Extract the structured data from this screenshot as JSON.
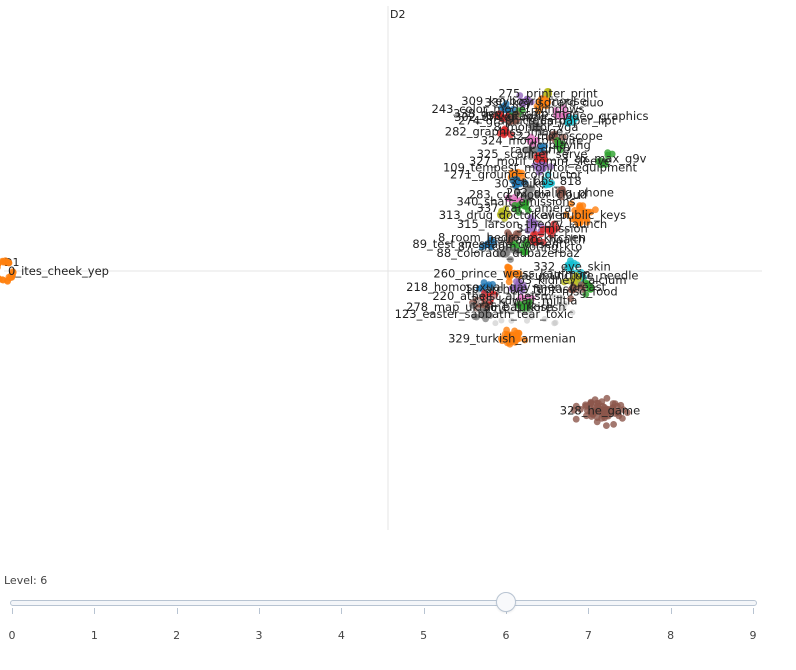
{
  "chart_data": {
    "type": "scatter",
    "xlabel": "D1",
    "ylabel": "D2",
    "grid": false,
    "legend": "none",
    "clusters": [
      {
        "label": "0_ites_cheek_yep",
        "x": -9.6,
        "y": 0.0,
        "color": "#ff7f0e",
        "count": 40,
        "spread": 0.22
      },
      {
        "label": "275_printer_print",
        "x": 4.0,
        "y": 3.95,
        "color": "#bcbd22",
        "count": 10,
        "spread": 0.15
      },
      {
        "label": "330_key_sdcard_duo",
        "x": 3.9,
        "y": 3.75,
        "color": "#ff7f0e",
        "count": 14,
        "spread": 0.35
      },
      {
        "label": "309_keyboard_mouse",
        "x": 3.4,
        "y": 3.78,
        "color": "#9467bd",
        "count": 10,
        "spread": 0.25
      },
      {
        "label": "243_color_model_windows",
        "x": 3.0,
        "y": 3.6,
        "color": "#1f77b4",
        "count": 10,
        "spread": 0.25
      },
      {
        "label": "338_device_chip_mac",
        "x": 3.2,
        "y": 3.5,
        "color": "#2ca02c",
        "count": 8,
        "spread": 0.25
      },
      {
        "label": "338_graphics_video_graphics",
        "x": 4.4,
        "y": 3.45,
        "color": "#e377c2",
        "count": 10,
        "spread": 0.3
      },
      {
        "label": "302_driver_mac",
        "x": 2.8,
        "y": 3.42,
        "color": "#d62728",
        "count": 10,
        "spread": 0.25
      },
      {
        "label": "274_graphics_card",
        "x": 3.1,
        "y": 3.35,
        "color": "#8c564b",
        "count": 10,
        "spread": 0.25
      },
      {
        "label": "tgus_paper_lipt",
        "x": 4.6,
        "y": 3.35,
        "color": "#17becf",
        "count": 10,
        "spread": 0.25
      },
      {
        "label": "8_monitor_vga",
        "x": 3.7,
        "y": 3.2,
        "color": "#7f7f7f",
        "count": 10,
        "spread": 0.25
      },
      {
        "label": "282_graphics_image",
        "x": 2.9,
        "y": 3.1,
        "color": "#d62728",
        "count": 10,
        "spread": 0.25
      },
      {
        "label": "322_microscope",
        "x": 4.2,
        "y": 3.0,
        "color": "#8c564b",
        "count": 8,
        "spread": 0.25
      },
      {
        "label": "324_monitor_wire",
        "x": 3.6,
        "y": 2.9,
        "color": "#e377c2",
        "count": 8,
        "spread": 0.25
      },
      {
        "label": "pc_playing",
        "x": 4.3,
        "y": 2.8,
        "color": "#2ca02c",
        "count": 8,
        "spread": 0.2
      },
      {
        "label": "rack_drive",
        "x": 3.8,
        "y": 2.7,
        "color": "#1f77b4",
        "count": 8,
        "spread": 0.2
      },
      {
        "label": "325_scanner_serve",
        "x": 3.6,
        "y": 2.6,
        "color": "#7f7f7f",
        "count": 8,
        "spread": 0.25
      },
      {
        "label": "3_ax_max_g9v",
        "x": 5.4,
        "y": 2.5,
        "color": "#2ca02c",
        "count": 8,
        "spread": 0.25
      },
      {
        "label": "327_motif_comm_sleeve",
        "x": 3.8,
        "y": 2.45,
        "color": "#d62728",
        "count": 10,
        "spread": 0.3
      },
      {
        "label": "109_tempest_monitor_equipment",
        "x": 3.8,
        "y": 2.3,
        "color": "#9467bd",
        "count": 10,
        "spread": 0.3
      },
      {
        "label": "271_ground_conductor",
        "x": 3.2,
        "y": 2.15,
        "color": "#ff7f0e",
        "count": 10,
        "spread": 0.3
      },
      {
        "label": "ca_bbs_818",
        "x": 4.0,
        "y": 2.0,
        "color": "#17becf",
        "count": 8,
        "spread": 0.25
      },
      {
        "label": "303_bike",
        "x": 3.3,
        "y": 1.95,
        "color": "#1f77b4",
        "count": 10,
        "spread": 0.3
      },
      {
        "label": "202_dialing_phone",
        "x": 4.3,
        "y": 1.75,
        "color": "#8c564b",
        "count": 10,
        "spread": 0.25
      },
      {
        "label": "283_cd_motor_cloud",
        "x": 3.5,
        "y": 1.7,
        "color": "#7f7f7f",
        "count": 12,
        "spread": 0.35
      },
      {
        "label": "340_shaft_emissions",
        "x": 3.2,
        "y": 1.55,
        "color": "#e377c2",
        "count": 10,
        "spread": 0.3
      },
      {
        "label": "337_car_camera",
        "x": 3.4,
        "y": 1.4,
        "color": "#2ca02c",
        "count": 10,
        "spread": 0.3
      },
      {
        "label": "313_drug_doctor_alien",
        "x": 2.9,
        "y": 1.25,
        "color": "#bcbd22",
        "count": 12,
        "spread": 0.3
      },
      {
        "label": "key_public_keys",
        "x": 4.8,
        "y": 1.25,
        "color": "#ff7f0e",
        "count": 30,
        "spread": 0.45
      },
      {
        "label": "315_larson_theory_launch",
        "x": 3.6,
        "y": 1.05,
        "color": "#9467bd",
        "count": 12,
        "spread": 0.35
      },
      {
        "label": "317_mission",
        "x": 4.1,
        "y": 0.95,
        "color": "#d62728",
        "count": 10,
        "spread": 0.3
      },
      {
        "label": "8_room_bedroom_kitchen",
        "x": 3.1,
        "y": 0.75,
        "color": "#8c564b",
        "count": 10,
        "spread": 0.3
      },
      {
        "label": "insurance_health",
        "x": 3.7,
        "y": 0.7,
        "color": "#d62728",
        "count": 10,
        "spread": 0.3
      },
      {
        "label": "89_test_message_consent",
        "x": 2.5,
        "y": 0.6,
        "color": "#1f77b4",
        "count": 10,
        "spread": 0.3
      },
      {
        "label": "87_sitcom_voting_kto",
        "x": 3.3,
        "y": 0.55,
        "color": "#2ca02c",
        "count": 12,
        "spread": 0.35
      },
      {
        "label": "88_colorado_dubazerbaz",
        "x": 3.0,
        "y": 0.4,
        "color": "#7f7f7f",
        "count": 10,
        "spread": 0.3
      },
      {
        "label": "332_eye_skin",
        "x": 4.6,
        "y": 0.1,
        "color": "#17becf",
        "count": 10,
        "spread": 0.3
      },
      {
        "label": "260_prince_weiss_kaufman",
        "x": 3.1,
        "y": -0.05,
        "color": "#ff7f0e",
        "count": 14,
        "spread": 0.35
      },
      {
        "label": "acupuncture_needle",
        "x": 4.8,
        "y": -0.1,
        "color": "#17becf",
        "count": 10,
        "spread": 0.3
      },
      {
        "label": "63_kidney_calcium",
        "x": 4.6,
        "y": -0.2,
        "color": "#bcbd22",
        "count": 10,
        "spread": 0.3
      },
      {
        "label": "breast",
        "x": 5.0,
        "y": -0.35,
        "color": "#2ca02c",
        "count": 10,
        "spread": 0.3
      },
      {
        "label": "218_homosexual_gay_men",
        "x": 2.4,
        "y": -0.35,
        "color": "#1f77b4",
        "count": 12,
        "spread": 0.3
      },
      {
        "label": "10_archive_fantasy",
        "x": 3.3,
        "y": -0.4,
        "color": "#9467bd",
        "count": 12,
        "spread": 0.35
      },
      {
        "label": "317_msg_food",
        "x": 4.7,
        "y": -0.45,
        "color": "#8c564b",
        "count": 10,
        "spread": 0.3
      },
      {
        "label": "220_atheist_atheism",
        "x": 2.6,
        "y": -0.55,
        "color": "#d62728",
        "count": 12,
        "spread": 0.3
      },
      {
        "label": "338_kuwait_militia",
        "x": 3.4,
        "y": -0.65,
        "color": "#e377c2",
        "count": 10,
        "spread": 0.3
      },
      {
        "label": "278_map_ukraine_turkish",
        "x": 2.3,
        "y": -0.8,
        "color": "#8c564b",
        "count": 12,
        "spread": 0.3
      },
      {
        "label": "36_bat_koresh",
        "x": 3.4,
        "y": -0.8,
        "color": "#2ca02c",
        "count": 10,
        "spread": 0.3
      },
      {
        "label": "123_easter_sabbath_tear_toxic",
        "x": 2.4,
        "y": -0.95,
        "color": "#7f7f7f",
        "count": 12,
        "spread": 0.35
      },
      {
        "label": "329_turkish_armenian",
        "x": 3.1,
        "y": -1.5,
        "color": "#ff7f0e",
        "count": 40,
        "spread": 0.35
      },
      {
        "label": "328_he_game",
        "x": 5.3,
        "y": -3.1,
        "color": "#8c564b",
        "count": 70,
        "spread": 0.55
      }
    ]
  },
  "slider": {
    "caption": "Level: 6",
    "value": 6,
    "min": 0,
    "max": 9,
    "ticks": [
      "0",
      "1",
      "2",
      "3",
      "4",
      "5",
      "6",
      "7",
      "8",
      "9"
    ]
  }
}
